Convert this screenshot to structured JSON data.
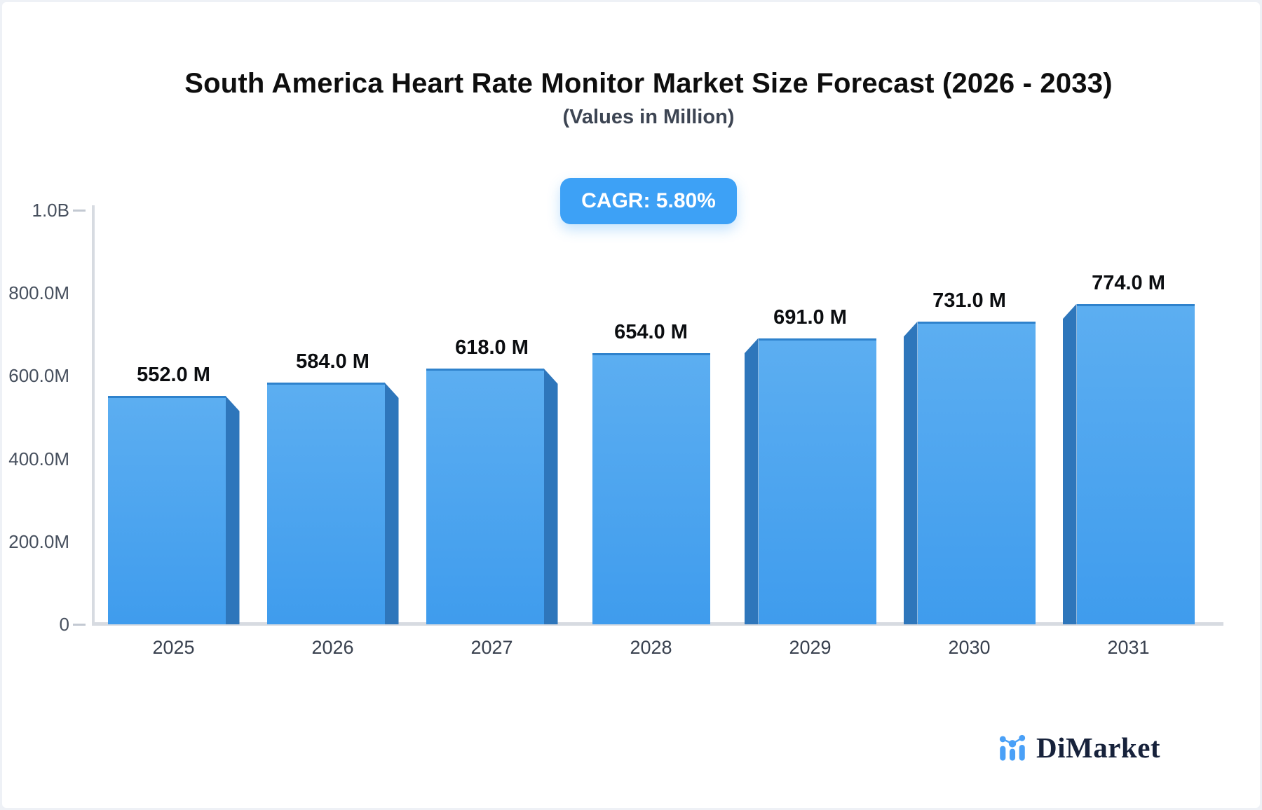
{
  "page": {
    "backdrop": "#eef1f6",
    "card_bg": "#ffffff"
  },
  "header": {
    "title": "South America Heart Rate Monitor Market Size Forecast (2026 - 2033)",
    "subtitle": "(Values in Million)",
    "cagr_badge": "CAGR: 5.80%"
  },
  "chart_data": {
    "type": "bar",
    "title": "South America Heart Rate Monitor Market Size Forecast (2026 - 2033)",
    "subtitle": "(Values in Million)",
    "cagr": "CAGR: 5.80%",
    "categories": [
      "2025",
      "2026",
      "2027",
      "2028",
      "2029",
      "2030",
      "2031"
    ],
    "values": [
      552.0,
      584.0,
      618.0,
      654.0,
      691.0,
      731.0,
      774.0
    ],
    "value_labels": [
      "552.0 M",
      "584.0 M",
      "618.0 M",
      "654.0 M",
      "691.0 M",
      "731.0 M",
      "774.0 M"
    ],
    "unit": "Million",
    "ylim": [
      0,
      1000
    ],
    "yticks": [
      {
        "value": 1000,
        "label": "1.0B",
        "dash": true
      },
      {
        "value": 800,
        "label": "800.0M",
        "dash": false
      },
      {
        "value": 600,
        "label": "600.0M",
        "dash": false
      },
      {
        "value": 400,
        "label": "400.0M",
        "dash": false
      },
      {
        "value": 200,
        "label": "200.0M",
        "dash": false
      },
      {
        "value": 0,
        "label": "0",
        "dash": true
      }
    ],
    "grid": false,
    "legend": false,
    "bar_3d": true,
    "colors": {
      "bar_front_top": "#5caef1",
      "bar_front_bottom": "#3f9ced",
      "bar_side": "#2e76bb",
      "badge_bg": "#3da1f6",
      "badge_text": "#ffffff",
      "axis_line": "#d7dbe1",
      "tick_text": "#47505e",
      "category_text": "#39414f",
      "value_text": "#0b0d10"
    }
  },
  "footer": {
    "brand": "DiMarket",
    "logo_blue": "#4aa0f7",
    "brand_text_color": "#17223b"
  }
}
